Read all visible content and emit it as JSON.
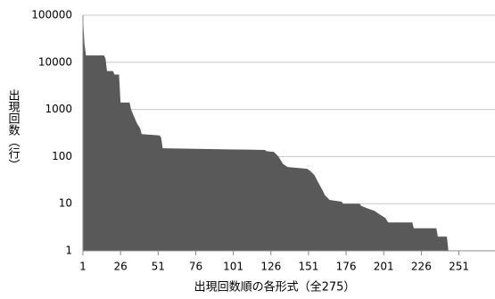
{
  "chart_data": {
    "type": "area",
    "y_label": "出現回数（行）",
    "x_label": "出現回数順の各形式（全275）",
    "x": [
      1,
      2,
      3,
      15,
      16,
      17,
      21,
      22,
      25,
      26,
      32,
      33,
      35,
      37,
      39,
      40,
      52,
      53,
      54,
      80,
      110,
      122,
      123,
      128,
      131,
      134,
      137,
      150,
      152,
      155,
      157,
      160,
      162,
      165,
      173,
      174,
      185,
      186,
      190,
      195,
      198,
      202,
      204,
      220,
      221,
      236,
      237,
      243,
      244
    ],
    "values": [
      90000,
      25000,
      14000,
      14000,
      12000,
      6500,
      6500,
      5500,
      5500,
      1400,
      1400,
      1000,
      700,
      500,
      400,
      300,
      280,
      250,
      150,
      145,
      140,
      138,
      130,
      125,
      100,
      70,
      60,
      55,
      50,
      40,
      30,
      20,
      15,
      12,
      11,
      10,
      10,
      9,
      8,
      7,
      6,
      5,
      4,
      4,
      3,
      3,
      2,
      2,
      1
    ],
    "color": "#595959",
    "xlim": [
      1,
      275
    ],
    "xticks": [
      1,
      26,
      51,
      76,
      101,
      126,
      151,
      176,
      201,
      226,
      251
    ],
    "ylim": [
      1,
      100000
    ],
    "yticks": [
      1,
      10,
      100,
      1000,
      10000,
      100000
    ],
    "log_y": true,
    "grid": true
  }
}
